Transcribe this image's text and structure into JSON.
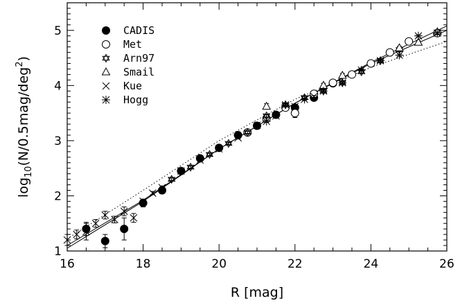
{
  "chart_data": {
    "type": "scatter",
    "xlabel": "R  [mag]",
    "ylabel_parts": {
      "base": "log",
      "sub": "10",
      "mid": "(N/0.5mag/deg",
      "sup": "2",
      "end": ")"
    },
    "xlim": [
      16,
      26
    ],
    "ylim": [
      1,
      5.5
    ],
    "x_ticks": [
      16,
      18,
      20,
      22,
      24,
      26
    ],
    "y_ticks": [
      1,
      2,
      3,
      4,
      5
    ],
    "grid": false,
    "legend_position": "top-left",
    "series": [
      {
        "name": "CADIS",
        "marker": "filled-circle",
        "x": [
          16.5,
          17.0,
          17.5,
          18.0,
          18.5,
          19.0,
          19.5,
          20.0,
          20.5,
          21.0,
          21.5,
          22.0,
          22.5,
          23.0
        ],
        "y": [
          1.4,
          1.18,
          1.4,
          1.87,
          2.1,
          2.45,
          2.68,
          2.87,
          3.1,
          3.27,
          3.47,
          3.6,
          3.78,
          4.04
        ],
        "yerr": [
          0.12,
          0.12,
          0.2,
          0.07,
          0.06,
          0.04,
          0.04,
          0.03,
          0.03,
          0.03,
          0.03,
          0.03,
          0.04,
          0.04
        ]
      },
      {
        "name": "Met",
        "marker": "open-circle",
        "x": [
          20.75,
          21.25,
          21.75,
          22.0,
          22.5,
          23.0,
          23.5,
          24.0,
          24.5,
          25.0,
          25.75
        ],
        "y": [
          3.15,
          3.4,
          3.6,
          3.5,
          3.85,
          4.05,
          4.2,
          4.4,
          4.6,
          4.8,
          4.95
        ],
        "yerr": [
          0.03,
          0.04,
          0.04,
          0.08,
          0.04,
          0.03,
          0.03,
          0.03,
          0.03,
          0.03,
          0.03
        ]
      },
      {
        "name": "Arn97",
        "marker": "star-of-david",
        "x": [
          18.75,
          19.25,
          19.75,
          20.25,
          20.75,
          21.25,
          21.75,
          22.25,
          22.75,
          23.25,
          23.75,
          24.25,
          24.75
        ],
        "y": [
          2.3,
          2.52,
          2.75,
          2.95,
          3.15,
          3.45,
          3.65,
          3.78,
          3.9,
          4.05,
          4.25,
          4.45,
          4.65
        ],
        "yerr": [
          0.02,
          0.02,
          0.02,
          0.02,
          0.02,
          0.02,
          0.02,
          0.02,
          0.02,
          0.02,
          0.02,
          0.02,
          0.02
        ]
      },
      {
        "name": "Smail",
        "marker": "open-triangle",
        "x": [
          21.25,
          22.75,
          23.25,
          24.75,
          25.25,
          25.75
        ],
        "y": [
          3.62,
          4.0,
          4.18,
          4.68,
          4.78,
          4.97
        ],
        "yerr": [
          0.05,
          0.04,
          0.04,
          0.03,
          0.03,
          0.03
        ]
      },
      {
        "name": "Kue",
        "marker": "cross",
        "x": [
          16.0,
          16.25,
          16.5,
          16.75,
          17.0,
          17.25,
          17.5,
          17.75,
          18.0,
          18.25,
          18.5,
          19.0,
          19.5,
          20.0,
          20.5,
          21.0,
          21.5,
          22.0,
          22.5
        ],
        "y": [
          1.2,
          1.3,
          1.35,
          1.5,
          1.65,
          1.57,
          1.72,
          1.6,
          1.9,
          2.05,
          2.15,
          2.45,
          2.65,
          2.85,
          3.05,
          3.28,
          3.45,
          3.62,
          3.8
        ],
        "yerr": [
          0.1,
          0.08,
          0.15,
          0.07,
          0.07,
          0.06,
          0.08,
          0.08,
          0.04,
          0.03,
          0.03,
          0.02,
          0.02,
          0.02,
          0.02,
          0.02,
          0.02,
          0.02,
          0.02
        ]
      },
      {
        "name": "Hogg",
        "marker": "asterisk",
        "x": [
          21.25,
          21.75,
          22.25,
          22.75,
          23.25,
          23.75,
          24.25,
          24.75,
          25.25,
          25.75
        ],
        "y": [
          3.35,
          3.65,
          3.75,
          3.9,
          4.05,
          4.28,
          4.45,
          4.55,
          4.9,
          4.95
        ],
        "yerr": [
          0.02,
          0.02,
          0.02,
          0.02,
          0.02,
          0.02,
          0.02,
          0.02,
          0.02,
          0.02
        ]
      }
    ],
    "model_lines": [
      {
        "style": "solid",
        "x": [
          16.0,
          18.0,
          20.0,
          22.0,
          24.0,
          26.0
        ],
        "y": [
          1.05,
          1.9,
          2.85,
          3.68,
          4.42,
          5.08
        ]
      },
      {
        "style": "solid",
        "x": [
          16.0,
          18.0,
          20.0,
          22.0,
          24.0,
          26.0
        ],
        "y": [
          1.1,
          1.92,
          2.85,
          3.68,
          4.4,
          5.0
        ]
      },
      {
        "style": "dotted",
        "x": [
          16.0,
          18.0,
          20.0,
          22.0,
          24.0,
          26.0
        ],
        "y": [
          1.22,
          2.1,
          3.0,
          3.75,
          4.33,
          4.8
        ]
      }
    ]
  }
}
